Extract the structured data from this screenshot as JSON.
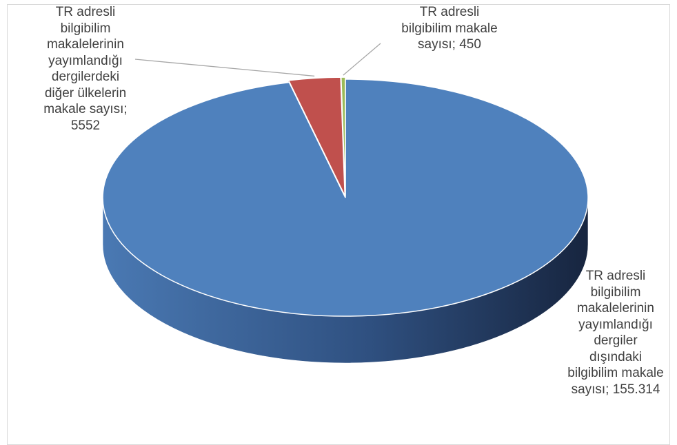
{
  "chart_data": {
    "type": "pie",
    "style": "3d",
    "title": "",
    "slices": [
      {
        "label": "TR adresli\nbilgibilim\nmakalelerinin\nyayımlandığı\ndergiler\ndışındaki\nbilgibilim makale\nsayısı; 155.314",
        "value": 155314,
        "color": "#4f81bd"
      },
      {
        "label": "TR adresli\nbilgibilim\nmakalelerinin\nyayımlandığı\ndergilerdeki\ndiğer ülkelerin\nmakale sayısı;\n5552",
        "value": 5552,
        "color": "#c0504d"
      },
      {
        "label": "TR adresli\nbilgibilim makale\nsayısı; 450",
        "value": 450,
        "color": "#9bbb59"
      }
    ],
    "legend": "none"
  }
}
